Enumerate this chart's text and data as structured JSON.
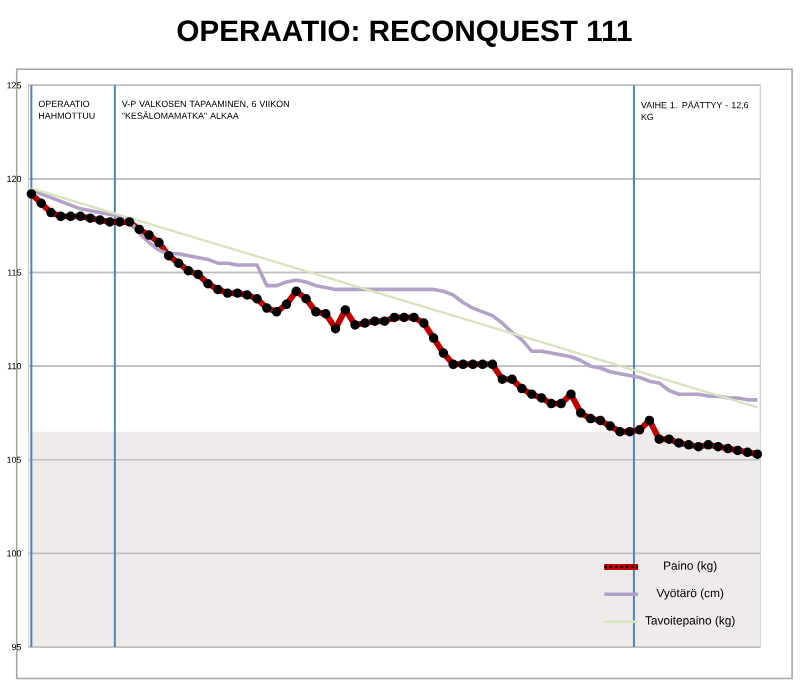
{
  "chart_data": {
    "type": "line",
    "title": "OPERAATIO: RECONQUEST 111",
    "categories": [
      null,
      null,
      null,
      null,
      null,
      null,
      null,
      null,
      null,
      null,
      null,
      null,
      null,
      null,
      null,
      null,
      null,
      null,
      null,
      null,
      null,
      null,
      null,
      null,
      null,
      null,
      null,
      null,
      null,
      null,
      null,
      null,
      null,
      null,
      null,
      null,
      null,
      null,
      null,
      null,
      null,
      null,
      null,
      null,
      null,
      null,
      null,
      null,
      null,
      null,
      null,
      null,
      null,
      null,
      null,
      null,
      null,
      null,
      null,
      null,
      null,
      null,
      null,
      null,
      null,
      null,
      null,
      null,
      null,
      null,
      null,
      null,
      null,
      null,
      null
    ],
    "series": [
      {
        "name": "Paino (kg)",
        "color": "#c00000",
        "marker": "circle",
        "values": [
          119.2,
          118.7,
          118.2,
          118.0,
          118.0,
          118.0,
          117.9,
          117.8,
          117.7,
          117.7,
          117.7,
          117.3,
          117.0,
          116.6,
          115.9,
          115.5,
          115.1,
          114.9,
          114.4,
          114.1,
          113.9,
          113.9,
          113.8,
          113.6,
          113.1,
          112.9,
          113.3,
          114.0,
          113.6,
          112.9,
          112.8,
          112.0,
          113.0,
          112.2,
          112.3,
          112.4,
          112.4,
          112.6,
          112.6,
          112.6,
          112.3,
          111.5,
          110.7,
          110.1,
          110.1,
          110.1,
          110.1,
          110.1,
          109.3,
          109.3,
          108.8,
          108.5,
          108.3,
          108.0,
          108.0,
          108.5,
          107.5,
          107.2,
          107.1,
          106.8,
          106.5,
          106.5,
          106.6,
          107.1,
          106.1,
          106.1,
          105.9,
          105.8,
          105.7,
          105.8,
          105.7,
          105.6,
          105.5,
          105.4,
          105.3
        ]
      },
      {
        "name": "Vyötärö  (cm)",
        "color": "#b3a2c7",
        "values": [
          119.4,
          119.2,
          119.0,
          118.8,
          118.6,
          118.4,
          118.3,
          118.2,
          118.1,
          118.0,
          117.8,
          117.1,
          116.6,
          116.2,
          116.0,
          116.0,
          115.9,
          115.8,
          115.7,
          115.5,
          115.5,
          115.4,
          115.4,
          115.4,
          114.3,
          114.3,
          114.5,
          114.6,
          114.5,
          114.3,
          114.2,
          114.1,
          114.1,
          114.1,
          114.1,
          114.1,
          114.1,
          114.1,
          114.1,
          114.1,
          114.1,
          114.1,
          114.0,
          113.8,
          113.4,
          113.1,
          112.9,
          112.7,
          112.3,
          111.8,
          111.4,
          110.8,
          110.8,
          110.7,
          110.6,
          110.5,
          110.3,
          110.0,
          109.9,
          109.7,
          109.6,
          109.5,
          109.4,
          109.2,
          109.1,
          108.7,
          108.5,
          108.5,
          108.5,
          108.4,
          108.4,
          108.3,
          108.3,
          108.2,
          108.2
        ]
      },
      {
        "name": "Tavoitepaino (kg)",
        "color": "#d7e4bd",
        "values": [
          119.5,
          null,
          null,
          null,
          null,
          null,
          null,
          null,
          null,
          null,
          null,
          null,
          null,
          null,
          null,
          null,
          null,
          null,
          null,
          null,
          null,
          null,
          null,
          null,
          null,
          null,
          null,
          null,
          null,
          null,
          null,
          null,
          null,
          null,
          null,
          null,
          null,
          null,
          null,
          null,
          null,
          null,
          null,
          null,
          null,
          null,
          null,
          null,
          null,
          null,
          null,
          null,
          null,
          null,
          null,
          null,
          null,
          null,
          null,
          null,
          null,
          null,
          null,
          null,
          null,
          null,
          null,
          null,
          null,
          null,
          null,
          null,
          null,
          null,
          107.8
        ]
      }
    ],
    "ylim": [
      95,
      125
    ],
    "yticks": [
      95,
      100,
      105,
      110,
      115,
      120,
      125
    ],
    "grid": "y",
    "legend": "bottom right",
    "annotations": [
      "OPERAATIO HAHMOTTUU",
      "V-P VALKOSEN TAPAAMINEN, 6 VIIKON \"KESÄLOMAMATKA\" ALKAA",
      "VAIHE 1. PÄÄTTYY - 12,6 KG"
    ],
    "bands": [
      {
        "axis": "y",
        "from": 95,
        "to": 106.5,
        "color": "#efebeb"
      }
    ]
  }
}
